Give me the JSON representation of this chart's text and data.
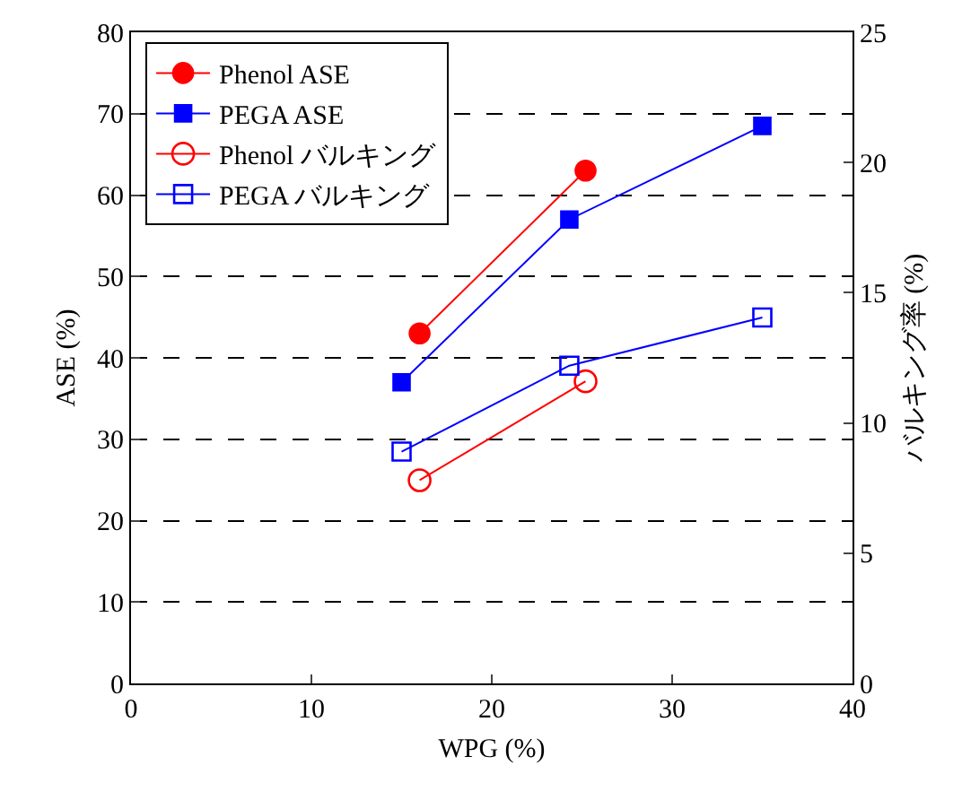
{
  "chart_data": {
    "type": "line",
    "xlabel": "WPG (%)",
    "ylabel": "ASE (%)",
    "y2label": "バルキング率 (%)",
    "xlim": [
      0,
      40
    ],
    "xticks": [
      0,
      10,
      20,
      30,
      40
    ],
    "ylim": [
      0,
      80
    ],
    "yticks": [
      0,
      10,
      20,
      30,
      40,
      50,
      60,
      70,
      80
    ],
    "y2lim": [
      0,
      25
    ],
    "y2ticks": [
      0,
      5,
      10,
      15,
      20,
      25
    ],
    "grid": "y",
    "legend": "top left",
    "line_style": "solid",
    "series": [
      {
        "name": "Phenol ASE",
        "color": "#ff0000",
        "marker": "circle",
        "x": [
          16,
          25.2
        ],
        "values": [
          43,
          63
        ]
      },
      {
        "name": "PEGA ASE",
        "color": "#0000ff",
        "marker": "square",
        "x": [
          15,
          24.3,
          35
        ],
        "values": [
          37,
          57,
          68.5
        ]
      },
      {
        "name": "Phenol バルキング",
        "color": "#ff0000",
        "marker": "circle-open",
        "axis": "y2",
        "x": [
          16,
          25.2
        ],
        "values": [
          7.8,
          11.6
        ]
      },
      {
        "name": "PEGA バルキング",
        "color": "#0000ff",
        "marker": "square-open",
        "axis": "y2",
        "x": [
          15,
          24.3,
          35
        ],
        "values": [
          8.9,
          12.2,
          14.05
        ]
      }
    ]
  }
}
